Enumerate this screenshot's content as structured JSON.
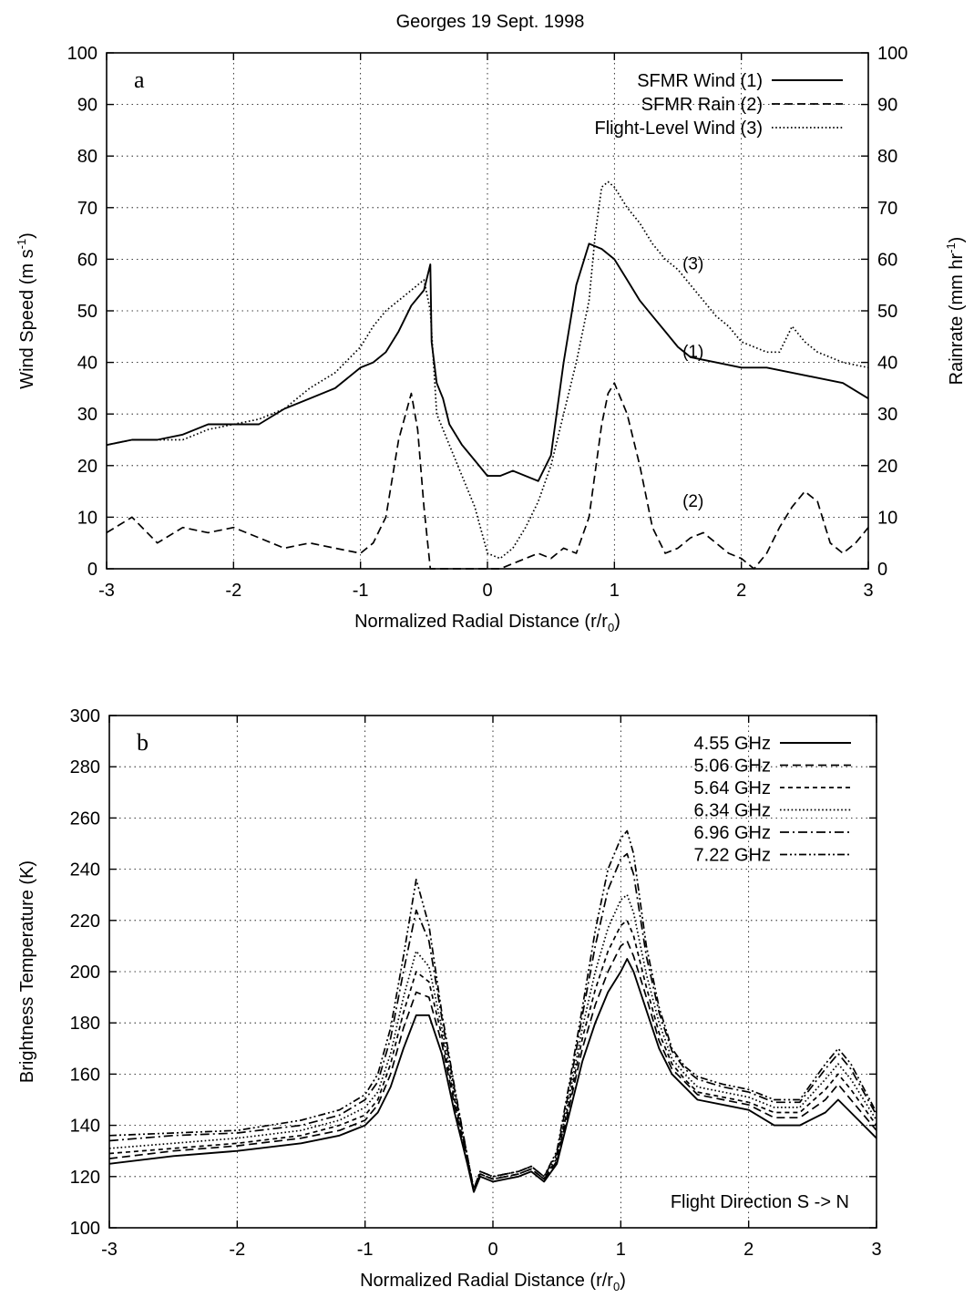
{
  "figure_title": "Georges 19 Sept. 1998",
  "chart_data": [
    {
      "type": "line",
      "panel_label": "a",
      "xlabel": "Normalized Radial Distance (r/r",
      "xlabel_sub": "0",
      "xlabel_end": ")",
      "ylabel": "Wind Speed (m s",
      "ylabel_sup": "-1",
      "ylabel_end": ")",
      "y2label": "Rainrate (mm hr",
      "y2label_sup": "-1",
      "y2label_end": ")",
      "xlim": [
        -3,
        3
      ],
      "ylim": [
        0,
        100
      ],
      "y2lim": [
        0,
        100
      ],
      "xticks": [
        "-3",
        "-2",
        "-1",
        "0",
        "1",
        "2",
        "3"
      ],
      "yticks": [
        "0",
        "10",
        "20",
        "30",
        "40",
        "50",
        "60",
        "70",
        "80",
        "90",
        "100"
      ],
      "y2ticks": [
        "0",
        "10",
        "20",
        "30",
        "40",
        "50",
        "60",
        "70",
        "80",
        "90",
        "100"
      ],
      "grid": true,
      "legend_position": "top-right",
      "series": [
        {
          "name": "SFMR Wind (1)",
          "style": "solid",
          "x": [
            -3.0,
            -2.8,
            -2.6,
            -2.4,
            -2.2,
            -2.0,
            -1.8,
            -1.6,
            -1.4,
            -1.2,
            -1.0,
            -0.9,
            -0.8,
            -0.7,
            -0.6,
            -0.5,
            -0.45,
            -0.44,
            -0.4,
            -0.35,
            -0.3,
            -0.2,
            -0.1,
            0.0,
            0.1,
            0.2,
            0.3,
            0.4,
            0.5,
            0.6,
            0.7,
            0.8,
            0.9,
            1.0,
            1.1,
            1.2,
            1.3,
            1.4,
            1.5,
            1.6,
            1.8,
            2.0,
            2.2,
            2.4,
            2.6,
            2.8,
            3.0
          ],
          "y": [
            24,
            25,
            25,
            26,
            28,
            28,
            28,
            31,
            33,
            35,
            39,
            40,
            42,
            46,
            51,
            54,
            59,
            44,
            36,
            33,
            28,
            24,
            21,
            18,
            18,
            19,
            18,
            17,
            22,
            40,
            55,
            63,
            62,
            60,
            56,
            52,
            49,
            46,
            43,
            41,
            40,
            39,
            39,
            38,
            37,
            36,
            33
          ],
          "label": "(1)",
          "label_at": [
            1.62,
            41
          ]
        },
        {
          "name": "SFMR Rain (2)",
          "style": "dashed",
          "x": [
            -3.0,
            -2.8,
            -2.6,
            -2.4,
            -2.2,
            -2.0,
            -1.8,
            -1.6,
            -1.4,
            -1.2,
            -1.0,
            -0.9,
            -0.8,
            -0.7,
            -0.6,
            -0.55,
            -0.5,
            -0.45,
            -0.4,
            -0.3,
            -0.2,
            -0.1,
            0.0,
            0.1,
            0.2,
            0.3,
            0.4,
            0.5,
            0.6,
            0.7,
            0.8,
            0.9,
            0.95,
            1.0,
            1.1,
            1.2,
            1.3,
            1.4,
            1.5,
            1.6,
            1.7,
            1.8,
            1.9,
            2.0,
            2.1,
            2.2,
            2.3,
            2.4,
            2.5,
            2.6,
            2.7,
            2.8,
            2.9,
            3.0
          ],
          "y": [
            7,
            10,
            5,
            8,
            7,
            8,
            6,
            4,
            5,
            4,
            3,
            5,
            10,
            25,
            34,
            27,
            12,
            0,
            0,
            0,
            0,
            0,
            0,
            0,
            1,
            2,
            3,
            2,
            4,
            3,
            10,
            28,
            34,
            36,
            30,
            20,
            8,
            3,
            4,
            6,
            7,
            5,
            3,
            2,
            0,
            3,
            8,
            12,
            15,
            13,
            5,
            3,
            5,
            8
          ],
          "label": "(2)",
          "label_at": [
            1.62,
            12
          ]
        },
        {
          "name": "Flight-Level Wind (3)",
          "style": "dotted",
          "x": [
            -3.0,
            -2.8,
            -2.6,
            -2.4,
            -2.2,
            -2.0,
            -1.8,
            -1.6,
            -1.4,
            -1.2,
            -1.0,
            -0.9,
            -0.8,
            -0.7,
            -0.6,
            -0.5,
            -0.45,
            -0.4,
            -0.3,
            -0.2,
            -0.1,
            0.0,
            0.1,
            0.2,
            0.3,
            0.4,
            0.5,
            0.6,
            0.7,
            0.8,
            0.85,
            0.9,
            0.95,
            1.0,
            1.1,
            1.2,
            1.3,
            1.4,
            1.5,
            1.6,
            1.7,
            1.8,
            1.9,
            2.0,
            2.2,
            2.3,
            2.4,
            2.5,
            2.6,
            2.8,
            3.0
          ],
          "y": [
            24,
            25,
            25,
            25,
            27,
            28,
            29,
            31,
            35,
            38,
            43,
            47,
            50,
            52,
            54,
            56,
            50,
            30,
            24,
            18,
            12,
            3,
            2,
            4,
            8,
            13,
            20,
            30,
            40,
            52,
            65,
            74,
            75,
            74,
            70,
            67,
            63,
            60,
            58,
            55,
            52,
            49,
            47,
            44,
            42,
            42,
            47,
            44,
            42,
            40,
            39
          ],
          "label": "(3)",
          "label_at": [
            1.62,
            58
          ]
        }
      ]
    },
    {
      "type": "line",
      "panel_label": "b",
      "xlabel": "Normalized Radial Distance (r/r",
      "xlabel_sub": "0",
      "xlabel_end": ")",
      "ylabel": "Brightness Temperature (K)",
      "xlim": [
        -3,
        3
      ],
      "ylim": [
        100,
        300
      ],
      "xticks": [
        "-3",
        "-2",
        "-1",
        "0",
        "1",
        "2",
        "3"
      ],
      "yticks": [
        "100",
        "120",
        "140",
        "160",
        "180",
        "200",
        "220",
        "240",
        "260",
        "280",
        "300"
      ],
      "grid": true,
      "legend_position": "top-right",
      "annotation": "Flight Direction S -> N",
      "x": [
        -3.0,
        -2.5,
        -2.0,
        -1.5,
        -1.2,
        -1.0,
        -0.9,
        -0.8,
        -0.7,
        -0.6,
        -0.5,
        -0.4,
        -0.3,
        -0.2,
        -0.15,
        -0.1,
        0.0,
        0.1,
        0.2,
        0.3,
        0.4,
        0.5,
        0.6,
        0.7,
        0.8,
        0.9,
        1.0,
        1.05,
        1.1,
        1.2,
        1.3,
        1.4,
        1.5,
        1.6,
        1.8,
        2.0,
        2.2,
        2.4,
        2.6,
        2.7,
        2.8,
        3.0
      ],
      "series": [
        {
          "name": "4.55 GHz",
          "style": "solid",
          "values": [
            125,
            128,
            130,
            133,
            136,
            140,
            145,
            155,
            170,
            183,
            183,
            168,
            145,
            125,
            114,
            120,
            118,
            119,
            120,
            122,
            118,
            125,
            145,
            165,
            180,
            192,
            200,
            205,
            200,
            185,
            170,
            160,
            155,
            150,
            148,
            146,
            140,
            140,
            145,
            150,
            145,
            135
          ]
        },
        {
          "name": "5.06 GHz",
          "style": "dashed",
          "values": [
            127,
            130,
            132,
            135,
            138,
            142,
            148,
            160,
            178,
            192,
            190,
            172,
            148,
            126,
            114,
            121,
            119,
            120,
            121,
            123,
            119,
            126,
            148,
            170,
            187,
            200,
            210,
            212,
            206,
            190,
            173,
            162,
            157,
            152,
            150,
            148,
            143,
            143,
            150,
            156,
            150,
            138
          ]
        },
        {
          "name": "5.64 GHz",
          "style": "short-dashed",
          "values": [
            129,
            131,
            133,
            136,
            140,
            144,
            150,
            164,
            184,
            200,
            196,
            175,
            150,
            127,
            114,
            121,
            119,
            120,
            121,
            123,
            119,
            127,
            150,
            174,
            193,
            208,
            218,
            220,
            214,
            194,
            176,
            164,
            158,
            153,
            151,
            149,
            145,
            145,
            154,
            160,
            154,
            140
          ]
        },
        {
          "name": "6.34 GHz",
          "style": "dotted",
          "values": [
            131,
            133,
            135,
            138,
            142,
            147,
            153,
            168,
            190,
            208,
            202,
            178,
            152,
            128,
            115,
            122,
            120,
            121,
            122,
            124,
            120,
            128,
            152,
            178,
            200,
            217,
            228,
            230,
            223,
            199,
            180,
            166,
            160,
            155,
            153,
            151,
            147,
            147,
            158,
            164,
            158,
            142
          ]
        },
        {
          "name": "6.96 GHz",
          "style": "dash-dot",
          "values": [
            134,
            136,
            137,
            140,
            144,
            150,
            157,
            174,
            200,
            224,
            212,
            182,
            154,
            128,
            115,
            122,
            120,
            121,
            122,
            124,
            120,
            129,
            155,
            183,
            210,
            232,
            244,
            246,
            238,
            206,
            184,
            169,
            162,
            158,
            155,
            153,
            149,
            149,
            162,
            168,
            162,
            144
          ]
        },
        {
          "name": "7.22 GHz",
          "style": "dash-dot-dot",
          "values": [
            136,
            137,
            138,
            142,
            146,
            152,
            160,
            178,
            206,
            236,
            218,
            184,
            155,
            128,
            115,
            122,
            120,
            121,
            122,
            124,
            120,
            130,
            157,
            186,
            216,
            240,
            252,
            255,
            246,
            210,
            186,
            170,
            163,
            159,
            156,
            154,
            150,
            150,
            164,
            170,
            164,
            145
          ]
        }
      ]
    }
  ]
}
